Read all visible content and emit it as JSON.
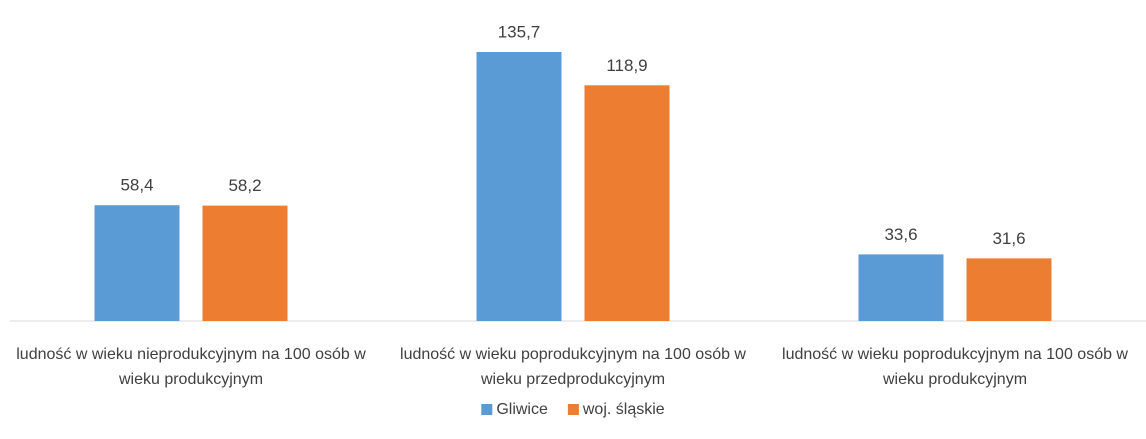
{
  "chart_data": {
    "type": "bar",
    "categories": [
      "ludność w wieku nieprodukcyjnym na 100 osób w wieku produkcyjnym",
      "ludność w wieku poprodukcyjnym na 100 osób w wieku przedprodukcyjnym",
      "ludność w wieku poprodukcyjnym na 100 osób w wieku produkcyjnym"
    ],
    "series": [
      {
        "name": "Gliwice",
        "color": "#5b9bd5",
        "values": [
          58.4,
          135.7,
          33.6
        ],
        "value_labels": [
          "58,4",
          "135,7",
          "33,6"
        ]
      },
      {
        "name": "woj. śląskie",
        "color": "#ed7d31",
        "values": [
          58.2,
          118.9,
          31.6
        ],
        "value_labels": [
          "58,2",
          "118,9",
          "31,6"
        ]
      }
    ],
    "legend": "bottom"
  }
}
